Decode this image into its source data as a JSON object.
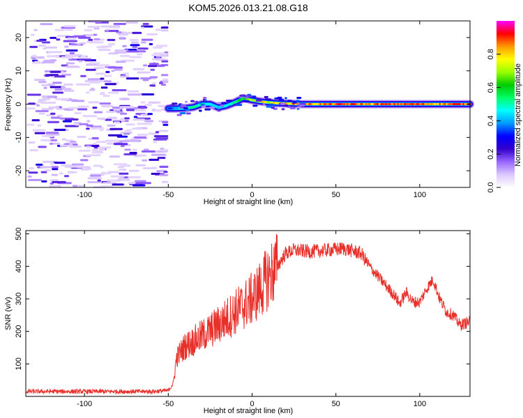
{
  "title": "KOM5.2026.013.21.08.G18",
  "chart_data": [
    {
      "type": "heatmap",
      "name": "spectrogram",
      "xlabel": "Height of straight line (km)",
      "ylabel": "Frequency (Hz)",
      "xlim": [
        -135,
        130
      ],
      "ylim": [
        -25,
        25
      ],
      "xticks": [
        -100,
        -50,
        0,
        50,
        100
      ],
      "yticks": [
        -20,
        -10,
        0,
        10,
        20
      ],
      "noise_region_x": [
        -135,
        -50
      ],
      "ridge": {
        "x": [
          -50,
          -45,
          -40,
          -35,
          -30,
          -25,
          -20,
          -15,
          -10,
          -5,
          0,
          5,
          10,
          15,
          20,
          25,
          30,
          40,
          50,
          60,
          70,
          80,
          90,
          100,
          110,
          120,
          130
        ],
        "freq": [
          -1.3,
          -1.3,
          -1.2,
          -0.9,
          0.0,
          0.0,
          -1.0,
          -0.4,
          0.6,
          1.8,
          1.2,
          0.8,
          0.5,
          0.3,
          0.2,
          0.1,
          0.0,
          0.0,
          0.0,
          0.0,
          0.0,
          0.0,
          0.0,
          0.0,
          0.0,
          0.0,
          0.0
        ],
        "amplitude": [
          0.35,
          0.45,
          0.55,
          0.55,
          0.55,
          0.45,
          0.45,
          0.5,
          0.55,
          0.7,
          0.75,
          0.85,
          0.8,
          0.85,
          0.9,
          0.9,
          0.9,
          0.9,
          0.95,
          0.95,
          0.9,
          0.95,
          0.95,
          0.95,
          0.9,
          0.95,
          0.95
        ]
      },
      "colorbar": {
        "label": "Normalized spectral amplitude",
        "range": [
          0,
          1
        ],
        "ticks": [
          0.0,
          0.2,
          0.4,
          0.6,
          0.8
        ],
        "tick_labels": [
          "0.0",
          "0.2",
          "0.4",
          "0.6",
          "0.8"
        ],
        "colors": [
          "#ffffff",
          "#dcc8ff",
          "#9966ff",
          "#3300cc",
          "#0000ff",
          "#0099ff",
          "#00ffff",
          "#00ff66",
          "#00cc00",
          "#99ff00",
          "#ffff00",
          "#ff9900",
          "#ff0000",
          "#ff00ff"
        ]
      },
      "x_tick_labels": [
        "-100",
        "-50",
        "0",
        "50",
        "100"
      ],
      "y_tick_labels": [
        "-20",
        "-10",
        "0",
        "10",
        "20"
      ]
    },
    {
      "type": "line",
      "name": "snr",
      "xlabel": "Height of straight line (km)",
      "ylabel": "SNR (v/v)",
      "xlim": [
        -135,
        130
      ],
      "ylim": [
        0,
        510
      ],
      "xticks": [
        -100,
        -50,
        0,
        50,
        100
      ],
      "yticks": [
        100,
        200,
        300,
        400,
        500
      ],
      "x_tick_labels": [
        "-100",
        "-50",
        "0",
        "50",
        "100"
      ],
      "y_tick_labels": [
        "100",
        "200",
        "300",
        "400",
        "500"
      ],
      "color": "#e8302a",
      "envelope": {
        "x": [
          -135,
          -60,
          -50,
          -47,
          -45,
          -40,
          -30,
          -20,
          -10,
          0,
          5,
          10,
          15,
          20,
          25,
          35,
          45,
          55,
          65,
          70,
          75,
          80,
          85,
          88,
          92,
          96,
          100,
          104,
          108,
          112,
          116,
          120,
          124,
          130
        ],
        "y": [
          15,
          15,
          18,
          40,
          120,
          155,
          185,
          220,
          260,
          300,
          330,
          370,
          400,
          440,
          450,
          445,
          450,
          455,
          440,
          400,
          370,
          340,
          310,
          285,
          320,
          290,
          290,
          330,
          360,
          300,
          260,
          250,
          220,
          230
        ]
      }
    }
  ]
}
